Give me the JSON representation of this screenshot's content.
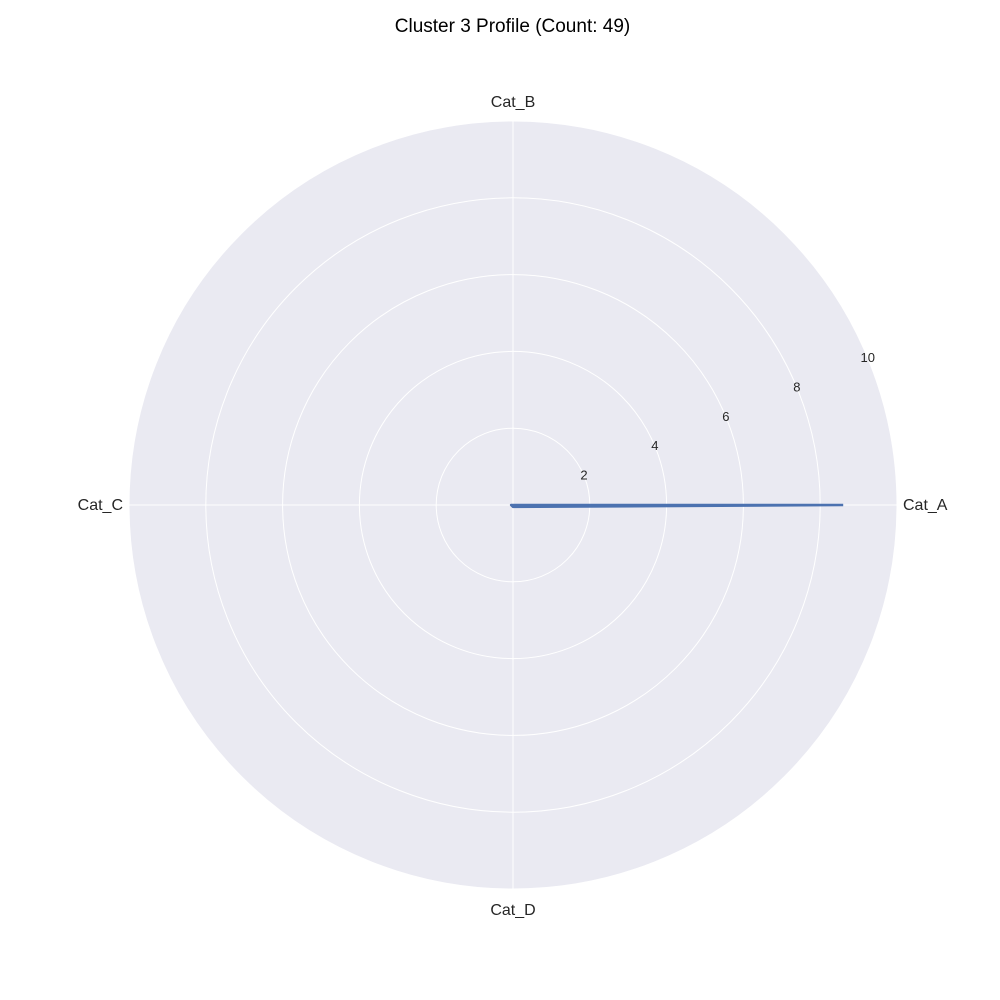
{
  "chart_data": {
    "type": "radar",
    "title": "Cluster 3 Profile (Count: 49)",
    "categories": [
      "Cat_A",
      "Cat_B",
      "Cat_C",
      "Cat_D"
    ],
    "series": [
      {
        "values": [
          8.6,
          0.0,
          0.05,
          0.05
        ]
      }
    ],
    "rlim": [
      0,
      10
    ],
    "rticks": [
      2,
      4,
      6,
      8,
      10
    ],
    "grid": true,
    "colors": {
      "background": "#EAEAF2",
      "grid": "#FFFFFF",
      "series": "#4C72B0"
    }
  }
}
